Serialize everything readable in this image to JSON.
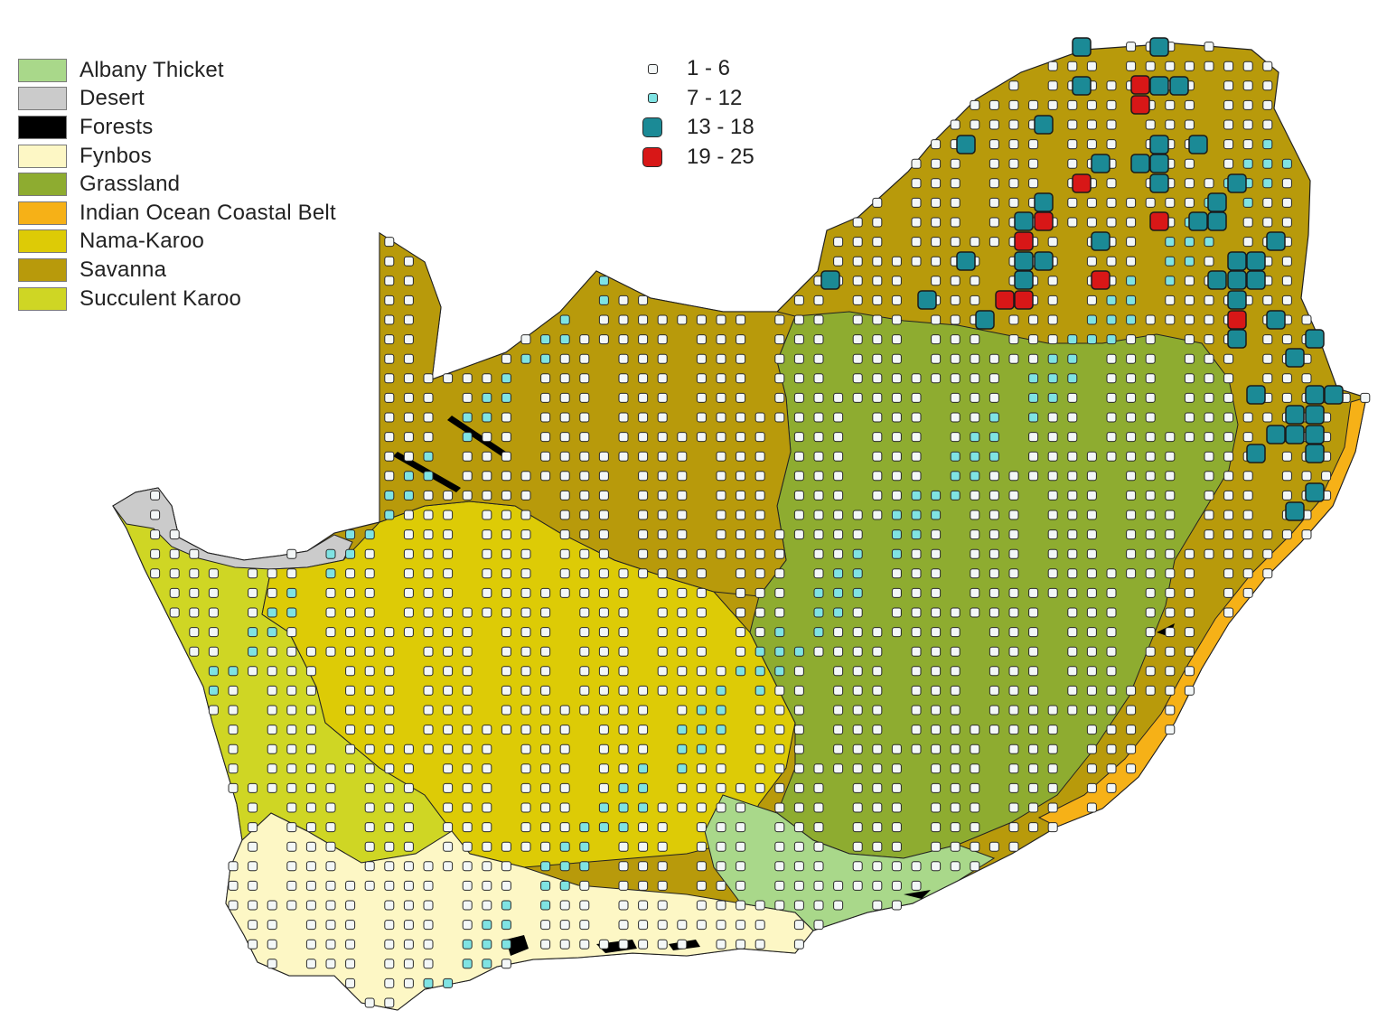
{
  "legend": {
    "biomes": [
      {
        "label": "Albany Thicket",
        "color": "#a9d88a"
      },
      {
        "label": "Desert",
        "color": "#cbcbcb"
      },
      {
        "label": "Forests",
        "color": "#000000"
      },
      {
        "label": "Fynbos",
        "color": "#fdf7c5"
      },
      {
        "label": "Grassland",
        "color": "#8eac30"
      },
      {
        "label": "Indian Ocean Coastal Belt",
        "color": "#f6b117"
      },
      {
        "label": "Nama-Karoo",
        "color": "#ddcb06"
      },
      {
        "label": "Savanna",
        "color": "#b89a0b"
      },
      {
        "label": "Succulent Karoo",
        "color": "#cfd624"
      }
    ],
    "counts": [
      {
        "label": "1 - 6",
        "color": "#f3f7f7",
        "size": "small"
      },
      {
        "label": "7 - 12",
        "color": "#7fe3e3",
        "size": "small"
      },
      {
        "label": "13 - 18",
        "color": "#1b8a96",
        "size": "large"
      },
      {
        "label": "19 - 25",
        "color": "#d81717",
        "size": "large"
      }
    ]
  }
}
